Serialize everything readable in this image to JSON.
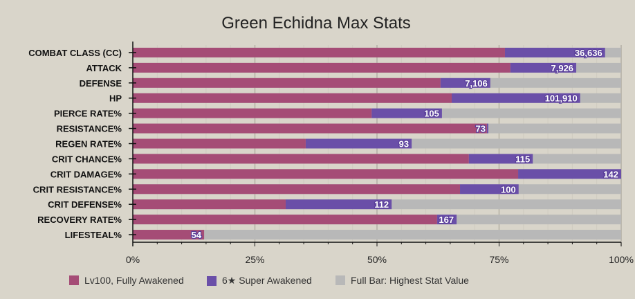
{
  "chart_data": {
    "type": "bar",
    "orientation": "horizontal",
    "stacked": true,
    "title": "Green Echidna Max Stats",
    "categories": [
      "COMBAT CLASS (CC)",
      "ATTACK",
      "DEFENSE",
      "HP",
      "PIERCE RATE%",
      "RESISTANCE%",
      "REGEN RATE%",
      "CRIT CHANCE%",
      "CRIT DAMAGE%",
      "CRIT RESISTANCE%",
      "CRIT DEFENSE%",
      "RECOVERY RATE%",
      "LIFESTEAL%"
    ],
    "series": [
      {
        "name": "Lv100, Fully Awakened",
        "color": "#a54c76",
        "values_pct": [
          76.2,
          77.3,
          63.0,
          65.3,
          48.9,
          72.5,
          35.4,
          68.8,
          78.9,
          67.0,
          31.3,
          62.3,
          14.6
        ]
      },
      {
        "name": "6★ Super Awakened",
        "color": "#6a4fa8",
        "values_pct": [
          96.7,
          90.8,
          73.2,
          91.6,
          63.3,
          72.8,
          57.1,
          81.9,
          100,
          79.0,
          53.0,
          66.3,
          14.6
        ],
        "labels": [
          "36,636",
          "7,926",
          "7,106",
          "101,910",
          "105",
          "73",
          "93",
          "115",
          "142",
          "100",
          "112",
          "167",
          "54"
        ]
      },
      {
        "name": "Full Bar: Highest Stat Value",
        "color": "#b8b8b8",
        "values_pct": [
          100,
          100,
          100,
          100,
          100,
          100,
          100,
          100,
          100,
          100,
          100,
          100,
          100
        ]
      }
    ],
    "xticks": [
      "0%",
      "25%",
      "50%",
      "75%",
      "100%"
    ],
    "xlim": [
      0,
      100
    ],
    "legend": "bottom"
  }
}
